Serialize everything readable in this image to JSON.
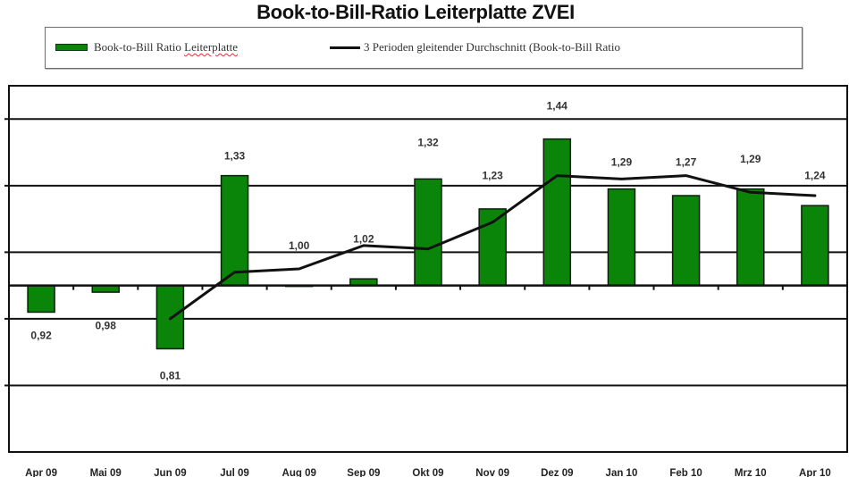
{
  "chart_data": {
    "type": "bar+line",
    "title": "Book-to-Bill-Ratio Leiterplatte ZVEI",
    "xlabel": "",
    "ylabel": "",
    "categories": [
      "Apr 09",
      "Mai 09",
      "Jun 09",
      "Jul 09",
      "Aug 09",
      "Sep 09",
      "Okt 09",
      "Nov 09",
      "Dez 09",
      "Jan 10",
      "Feb 10",
      "Mrz 10",
      "Apr 10"
    ],
    "series": [
      {
        "name": "Book-to-Bill Ratio Leiterplatte",
        "type": "bar",
        "color": "#0a850a",
        "baseline": 1.0,
        "values": [
          0.92,
          0.98,
          0.81,
          1.33,
          1.0,
          1.02,
          1.32,
          1.23,
          1.44,
          1.29,
          1.27,
          1.29,
          1.24
        ],
        "data_labels": [
          "0,92",
          "0,98",
          "0,81",
          "1,33",
          "1,00",
          "1,02",
          "1,32",
          "1,23",
          "1,44",
          "1,29",
          "1,27",
          "1,29",
          "1,24"
        ],
        "label_at": [
          0.85,
          0.88,
          0.73,
          1.39,
          1.12,
          1.14,
          1.43,
          1.33,
          1.54,
          1.37,
          1.37,
          1.38,
          1.33
        ]
      },
      {
        "name": "3 Perioden gleitender Durchschnitt (Book-to-Bill Ratio",
        "type": "line",
        "color": "#111111",
        "values": [
          null,
          null,
          0.9,
          1.04,
          1.05,
          1.12,
          1.11,
          1.19,
          1.33,
          1.32,
          1.33,
          1.28,
          1.27
        ]
      }
    ],
    "ylim": [
      0.5,
      1.6
    ],
    "gridlines": [
      0.7,
      0.9,
      1.1,
      1.3,
      1.5
    ],
    "grid": true,
    "y_tick_labels_visible": false,
    "legend_position": "top"
  },
  "legend": {
    "bar_label_a": "Book-to-Bill Ratio ",
    "bar_label_b": "Leiterplatte",
    "line_label": "3 Perioden gleitender Durchschnitt (Book-to-Bill Ratio"
  }
}
